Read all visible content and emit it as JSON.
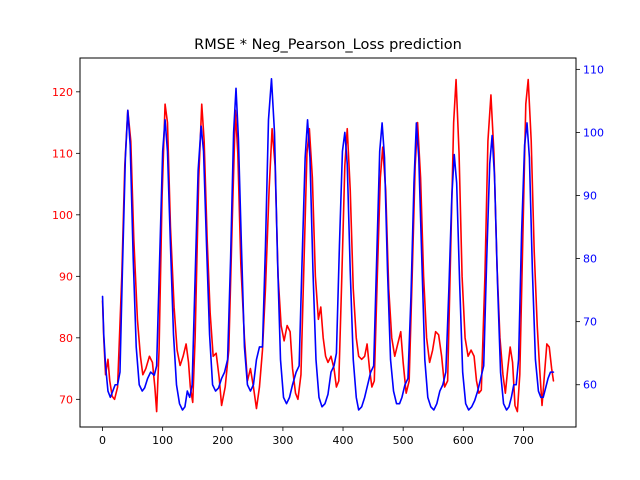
{
  "chart_data": {
    "type": "line",
    "title": "RMSE * Neg_Pearson_Loss prediction",
    "xlabel": "",
    "ylabel_left": "",
    "ylabel_right": "",
    "grid": false,
    "legend": "none",
    "xlim": [
      -37.5,
      787.5
    ],
    "ylim_left": [
      65.5,
      125.5
    ],
    "ylim_right": [
      53.3,
      111.8
    ],
    "x_ticks": [
      0,
      100,
      200,
      300,
      400,
      500,
      600,
      700
    ],
    "y_ticks_left": [
      70,
      80,
      90,
      100,
      110,
      120
    ],
    "y_ticks_right": [
      60,
      70,
      80,
      90,
      100,
      110
    ],
    "series": [
      {
        "color": "#ff0000",
        "axis": "left",
        "points": [
          [
            0,
            86
          ],
          [
            2,
            80
          ],
          [
            5,
            74
          ],
          [
            9,
            76.5
          ],
          [
            12,
            73
          ],
          [
            16,
            70.5
          ],
          [
            20,
            70
          ],
          [
            25,
            72
          ],
          [
            32,
            90
          ],
          [
            37,
            108
          ],
          [
            42,
            117
          ],
          [
            47,
            112
          ],
          [
            52,
            96
          ],
          [
            58,
            83
          ],
          [
            63,
            77
          ],
          [
            67,
            74
          ],
          [
            72,
            75
          ],
          [
            78,
            77
          ],
          [
            83,
            76
          ],
          [
            87,
            72
          ],
          [
            90,
            68
          ],
          [
            94,
            78
          ],
          [
            99,
            103
          ],
          [
            104,
            118
          ],
          [
            108,
            115
          ],
          [
            113,
            98
          ],
          [
            119,
            85
          ],
          [
            124,
            78
          ],
          [
            129,
            75.5
          ],
          [
            134,
            77
          ],
          [
            139,
            79
          ],
          [
            143,
            76
          ],
          [
            146,
            72
          ],
          [
            150,
            69.5
          ],
          [
            154,
            80
          ],
          [
            160,
            106
          ],
          [
            165,
            118
          ],
          [
            169,
            112
          ],
          [
            174,
            96
          ],
          [
            179,
            84
          ],
          [
            184,
            77
          ],
          [
            189,
            77.5
          ],
          [
            194,
            73.5
          ],
          [
            198,
            69
          ],
          [
            204,
            72
          ],
          [
            210,
            78
          ],
          [
            216,
            100
          ],
          [
            221,
            117
          ],
          [
            225,
            110
          ],
          [
            230,
            92
          ],
          [
            236,
            80
          ],
          [
            241,
            73
          ],
          [
            246,
            75
          ],
          [
            251,
            72
          ],
          [
            256,
            68.5
          ],
          [
            261,
            72
          ],
          [
            266,
            78
          ],
          [
            271,
            88
          ],
          [
            277,
            104
          ],
          [
            282,
            114
          ],
          [
            287,
            108
          ],
          [
            292,
            90
          ],
          [
            297,
            82
          ],
          [
            302,
            79.5
          ],
          [
            307,
            82
          ],
          [
            312,
            81
          ],
          [
            316,
            75
          ],
          [
            321,
            71
          ],
          [
            325,
            70
          ],
          [
            330,
            74
          ],
          [
            335,
            92
          ],
          [
            340,
            110
          ],
          [
            344,
            114
          ],
          [
            349,
            106
          ],
          [
            354,
            90
          ],
          [
            359,
            83
          ],
          [
            363,
            85
          ],
          [
            367,
            80
          ],
          [
            371,
            77
          ],
          [
            375,
            76
          ],
          [
            380,
            77
          ],
          [
            385,
            75
          ],
          [
            389,
            72
          ],
          [
            393,
            73
          ],
          [
            398,
            90
          ],
          [
            403,
            108
          ],
          [
            407,
            114
          ],
          [
            412,
            104
          ],
          [
            417,
            88
          ],
          [
            422,
            80
          ],
          [
            426,
            77
          ],
          [
            431,
            76.5
          ],
          [
            436,
            77
          ],
          [
            440,
            79
          ],
          [
            444,
            75
          ],
          [
            448,
            72
          ],
          [
            452,
            73
          ],
          [
            457,
            90
          ],
          [
            462,
            106
          ],
          [
            466,
            111
          ],
          [
            471,
            104
          ],
          [
            476,
            88
          ],
          [
            481,
            80
          ],
          [
            486,
            77
          ],
          [
            491,
            79
          ],
          [
            496,
            81
          ],
          [
            500,
            76
          ],
          [
            505,
            71
          ],
          [
            510,
            73
          ],
          [
            515,
            90
          ],
          [
            520,
            108
          ],
          [
            524,
            115
          ],
          [
            529,
            106
          ],
          [
            534,
            90
          ],
          [
            539,
            80
          ],
          [
            544,
            76
          ],
          [
            549,
            78
          ],
          [
            554,
            81
          ],
          [
            559,
            80.5
          ],
          [
            564,
            77
          ],
          [
            569,
            72
          ],
          [
            574,
            73
          ],
          [
            579,
            94
          ],
          [
            584,
            115
          ],
          [
            588,
            122
          ],
          [
            593,
            110
          ],
          [
            598,
            90
          ],
          [
            603,
            80
          ],
          [
            608,
            77
          ],
          [
            613,
            78
          ],
          [
            618,
            77
          ],
          [
            622,
            73
          ],
          [
            626,
            71
          ],
          [
            630,
            71.5
          ],
          [
            636,
            90
          ],
          [
            641,
            112
          ],
          [
            646,
            119.5
          ],
          [
            651,
            110
          ],
          [
            656,
            92
          ],
          [
            661,
            80
          ],
          [
            666,
            74
          ],
          [
            670,
            71
          ],
          [
            674,
            75
          ],
          [
            678,
            78.5
          ],
          [
            682,
            76
          ],
          [
            686,
            69
          ],
          [
            690,
            68
          ],
          [
            694,
            74
          ],
          [
            699,
            96
          ],
          [
            704,
            118
          ],
          [
            708,
            122
          ],
          [
            713,
            112
          ],
          [
            718,
            94
          ],
          [
            723,
            82
          ],
          [
            727,
            75
          ],
          [
            731,
            69
          ],
          [
            735,
            74
          ],
          [
            739,
            79
          ],
          [
            743,
            78.5
          ],
          [
            747,
            75
          ],
          [
            750,
            73
          ]
        ]
      },
      {
        "color": "#0000ff",
        "axis": "right",
        "points": [
          [
            0,
            74
          ],
          [
            2,
            68
          ],
          [
            5,
            63
          ],
          [
            9,
            59
          ],
          [
            13,
            58
          ],
          [
            17,
            59
          ],
          [
            21,
            60
          ],
          [
            25,
            60
          ],
          [
            29,
            62
          ],
          [
            33,
            78
          ],
          [
            38,
            96
          ],
          [
            42,
            103.5
          ],
          [
            46,
            98
          ],
          [
            51,
            80
          ],
          [
            56,
            66
          ],
          [
            61,
            60
          ],
          [
            66,
            59
          ],
          [
            70,
            59.5
          ],
          [
            75,
            61
          ],
          [
            80,
            62
          ],
          [
            86,
            61.5
          ],
          [
            90,
            63
          ],
          [
            95,
            80
          ],
          [
            100,
            97
          ],
          [
            104,
            102
          ],
          [
            108,
            97
          ],
          [
            113,
            82
          ],
          [
            118,
            68
          ],
          [
            123,
            60
          ],
          [
            128,
            57
          ],
          [
            133,
            56
          ],
          [
            137,
            56.5
          ],
          [
            141,
            59
          ],
          [
            145,
            58
          ],
          [
            149,
            60
          ],
          [
            154,
            77
          ],
          [
            159,
            94
          ],
          [
            164,
            101
          ],
          [
            168,
            97
          ],
          [
            173,
            82
          ],
          [
            178,
            68
          ],
          [
            183,
            60
          ],
          [
            188,
            59
          ],
          [
            193,
            59.5
          ],
          [
            198,
            61
          ],
          [
            203,
            62
          ],
          [
            208,
            64
          ],
          [
            213,
            80
          ],
          [
            218,
            100
          ],
          [
            222,
            107
          ],
          [
            226,
            99
          ],
          [
            231,
            82
          ],
          [
            236,
            66
          ],
          [
            241,
            60
          ],
          [
            246,
            59
          ],
          [
            251,
            60
          ],
          [
            256,
            64
          ],
          [
            261,
            66
          ],
          [
            266,
            66
          ],
          [
            271,
            82
          ],
          [
            276,
            102
          ],
          [
            281,
            108.5
          ],
          [
            286,
            100
          ],
          [
            291,
            80
          ],
          [
            296,
            64
          ],
          [
            301,
            58
          ],
          [
            306,
            57
          ],
          [
            311,
            58
          ],
          [
            316,
            60
          ],
          [
            322,
            62
          ],
          [
            327,
            63
          ],
          [
            332,
            80
          ],
          [
            337,
            96
          ],
          [
            341,
            102
          ],
          [
            345,
            96
          ],
          [
            350,
            78
          ],
          [
            355,
            64
          ],
          [
            360,
            58
          ],
          [
            365,
            56.5
          ],
          [
            370,
            57
          ],
          [
            375,
            58.5
          ],
          [
            380,
            62
          ],
          [
            385,
            63
          ],
          [
            389,
            65
          ],
          [
            394,
            82
          ],
          [
            399,
            97
          ],
          [
            403,
            100
          ],
          [
            407,
            95
          ],
          [
            412,
            78
          ],
          [
            417,
            64
          ],
          [
            422,
            58
          ],
          [
            426,
            56
          ],
          [
            431,
            56.5
          ],
          [
            436,
            58
          ],
          [
            441,
            60
          ],
          [
            446,
            62
          ],
          [
            451,
            63
          ],
          [
            456,
            80
          ],
          [
            461,
            97
          ],
          [
            465,
            101.5
          ],
          [
            469,
            96
          ],
          [
            474,
            78
          ],
          [
            479,
            64
          ],
          [
            484,
            59
          ],
          [
            489,
            57
          ],
          [
            494,
            57
          ],
          [
            498,
            58
          ],
          [
            503,
            60
          ],
          [
            508,
            61
          ],
          [
            513,
            74
          ],
          [
            518,
            92
          ],
          [
            522,
            101.5
          ],
          [
            526,
            96
          ],
          [
            531,
            80
          ],
          [
            536,
            64
          ],
          [
            541,
            58
          ],
          [
            546,
            56.5
          ],
          [
            551,
            56
          ],
          [
            556,
            57
          ],
          [
            561,
            59
          ],
          [
            566,
            60
          ],
          [
            571,
            62
          ],
          [
            576,
            75
          ],
          [
            581,
            90
          ],
          [
            585,
            96.5
          ],
          [
            589,
            92
          ],
          [
            594,
            76
          ],
          [
            599,
            62
          ],
          [
            604,
            57
          ],
          [
            609,
            56
          ],
          [
            614,
            56.5
          ],
          [
            619,
            57.5
          ],
          [
            624,
            59
          ],
          [
            629,
            61
          ],
          [
            634,
            63
          ],
          [
            639,
            80
          ],
          [
            644,
            95
          ],
          [
            648,
            99.5
          ],
          [
            652,
            93
          ],
          [
            657,
            76
          ],
          [
            662,
            62
          ],
          [
            667,
            57
          ],
          [
            672,
            56
          ],
          [
            676,
            56.5
          ],
          [
            680,
            58
          ],
          [
            684,
            60
          ],
          [
            688,
            60
          ],
          [
            692,
            64
          ],
          [
            697,
            84
          ],
          [
            702,
            98
          ],
          [
            706,
            101.5
          ],
          [
            710,
            96
          ],
          [
            715,
            78
          ],
          [
            720,
            64
          ],
          [
            725,
            59
          ],
          [
            729,
            58
          ],
          [
            733,
            58
          ],
          [
            737,
            59.5
          ],
          [
            741,
            61
          ],
          [
            745,
            62
          ],
          [
            750,
            62
          ]
        ]
      }
    ]
  }
}
